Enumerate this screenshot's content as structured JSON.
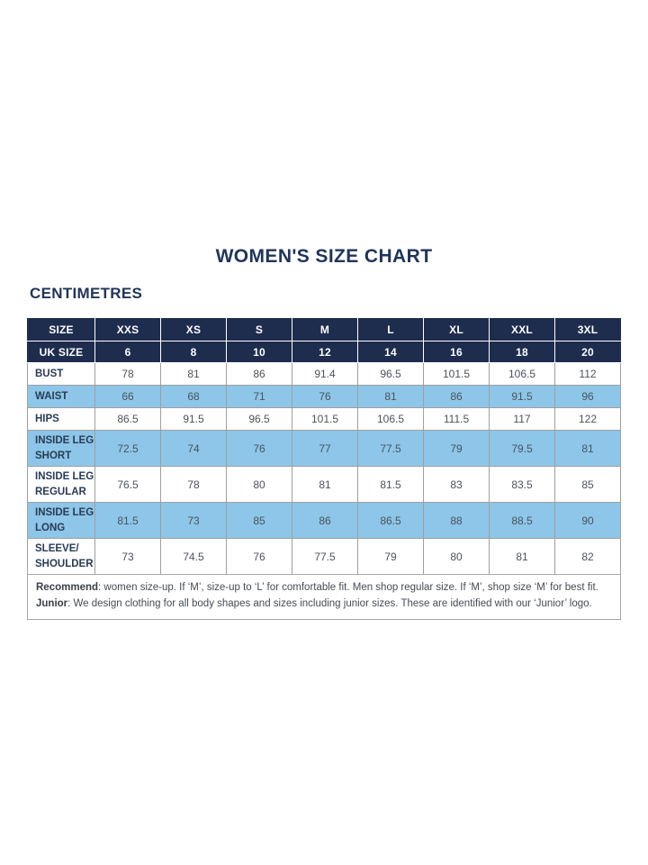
{
  "page_title": "WOMEN'S SIZE CHART",
  "units_label": "CENTIMETRES",
  "colors": {
    "header_navy": "#1e2c4e",
    "title_navy": "#223559",
    "row_blue": "#8dc6e8",
    "body_text": "#4c525c",
    "border_gray": "#9f9f9f"
  },
  "chart_data": {
    "type": "table",
    "title": "WOMEN'S SIZE CHART",
    "units": "CENTIMETRES",
    "header_rows": [
      {
        "label": "SIZE",
        "values": [
          "XXS",
          "XS",
          "S",
          "M",
          "L",
          "XL",
          "XXL",
          "3XL"
        ]
      },
      {
        "label": "UK SIZE",
        "values": [
          "6",
          "8",
          "10",
          "12",
          "14",
          "16",
          "18",
          "20"
        ]
      }
    ],
    "rows": [
      {
        "label": "BUST",
        "values": [
          "78",
          "81",
          "86",
          "91.4",
          "96.5",
          "101.5",
          "106.5",
          "112"
        ]
      },
      {
        "label": "WAIST",
        "values": [
          "66",
          "68",
          "71",
          "76",
          "81",
          "86",
          "91.5",
          "96"
        ]
      },
      {
        "label": "HIPS",
        "values": [
          "86.5",
          "91.5",
          "96.5",
          "101.5",
          "106.5",
          "111.5",
          "117",
          "122"
        ]
      },
      {
        "label": "INSIDE LEG\nSHORT",
        "values": [
          "72.5",
          "74",
          "76",
          "77",
          "77.5",
          "79",
          "79.5",
          "81"
        ]
      },
      {
        "label": "INSIDE LEG\nREGULAR",
        "values": [
          "76.5",
          "78",
          "80",
          "81",
          "81.5",
          "83",
          "83.5",
          "85"
        ]
      },
      {
        "label": "INSIDE LEG\nLONG",
        "values": [
          "81.5",
          "73",
          "85",
          "86",
          "86.5",
          "88",
          "88.5",
          "90"
        ]
      },
      {
        "label": "SLEEVE/\nSHOULDER",
        "values": [
          "73",
          "74.5",
          "76",
          "77.5",
          "79",
          "80",
          "81",
          "82"
        ]
      }
    ]
  },
  "footer": {
    "recommend_label": "Recommend",
    "recommend_text": ": women size-up. If ‘M’, size-up to ‘L’ for comfortable fit. Men shop regular size. If ‘M’, shop size ‘M’ for best fit.",
    "junior_label": "Junior",
    "junior_text": ": We design clothing for all body shapes and sizes including junior sizes. These are identified with our ‘Junior’ logo."
  }
}
